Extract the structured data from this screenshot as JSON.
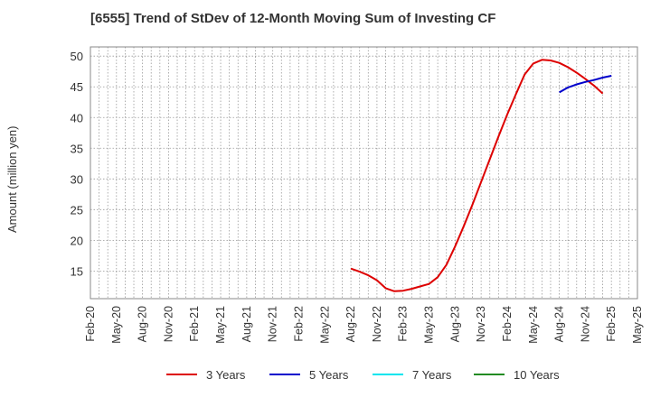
{
  "chart_data": {
    "type": "line",
    "title": "[6555]  Trend of StDev of 12-Month Moving Sum of Investing CF",
    "xlabel": "",
    "ylabel": "Amount (million yen)",
    "ylim": [
      10.5,
      51.5
    ],
    "yticks": [
      15,
      20,
      25,
      30,
      35,
      40,
      45,
      50
    ],
    "xticks": [
      "Feb-20",
      "May-20",
      "Aug-20",
      "Nov-20",
      "Feb-21",
      "May-21",
      "Aug-21",
      "Nov-21",
      "Feb-22",
      "May-22",
      "Aug-22",
      "Nov-22",
      "Feb-23",
      "May-23",
      "Aug-23",
      "Nov-23",
      "Feb-24",
      "May-24",
      "Aug-24",
      "Nov-24",
      "Feb-25",
      "May-25"
    ],
    "grid": true,
    "legend_position": "bottom",
    "series": [
      {
        "name": "3 Years",
        "color": "#dd0000",
        "points": [
          [
            "Aug-22",
            15.4
          ],
          [
            "Sep-22",
            14.9
          ],
          [
            "Oct-22",
            14.3
          ],
          [
            "Nov-22",
            13.5
          ],
          [
            "Dec-22",
            12.2
          ],
          [
            "Jan-23",
            11.7
          ],
          [
            "Feb-23",
            11.8
          ],
          [
            "Mar-23",
            12.1
          ],
          [
            "Apr-23",
            12.5
          ],
          [
            "May-23",
            12.9
          ],
          [
            "Jun-23",
            14.0
          ],
          [
            "Jul-23",
            16.0
          ],
          [
            "Aug-23",
            19.0
          ],
          [
            "Sep-23",
            22.3
          ],
          [
            "Oct-23",
            25.8
          ],
          [
            "Nov-23",
            29.5
          ],
          [
            "Dec-23",
            33.2
          ],
          [
            "Jan-24",
            36.9
          ],
          [
            "Feb-24",
            40.5
          ],
          [
            "Mar-24",
            43.8
          ],
          [
            "Apr-24",
            47.0
          ],
          [
            "May-24",
            48.8
          ],
          [
            "Jun-24",
            49.4
          ],
          [
            "Jul-24",
            49.3
          ],
          [
            "Aug-24",
            48.9
          ],
          [
            "Sep-24",
            48.2
          ],
          [
            "Oct-24",
            47.3
          ],
          [
            "Nov-24",
            46.3
          ],
          [
            "Dec-24",
            45.2
          ],
          [
            "Jan-25",
            43.9
          ]
        ]
      },
      {
        "name": "5 Years",
        "color": "#0000cc",
        "points": [
          [
            "Aug-24",
            44.1
          ],
          [
            "Sep-24",
            44.9
          ],
          [
            "Oct-24",
            45.4
          ],
          [
            "Nov-24",
            45.8
          ],
          [
            "Dec-24",
            46.1
          ],
          [
            "Jan-25",
            46.5
          ],
          [
            "Feb-25",
            46.8
          ]
        ]
      },
      {
        "name": "7 Years",
        "color": "#00e5ee",
        "points": []
      },
      {
        "name": "10 Years",
        "color": "#228b22",
        "points": []
      }
    ]
  }
}
